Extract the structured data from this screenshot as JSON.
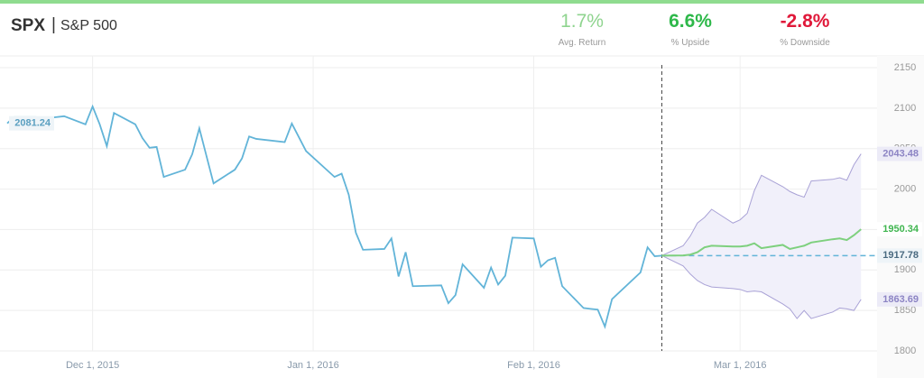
{
  "header": {
    "symbol": "SPX",
    "name": "S&P 500",
    "stats": [
      {
        "value": "1.7%",
        "label": "Avg. Return"
      },
      {
        "value": "6.6%",
        "label": "% Upside"
      },
      {
        "value": "-2.8%",
        "label": "% Downside"
      }
    ]
  },
  "chart_data": {
    "type": "line",
    "xlim": [
      "2015-11-19",
      "2016-03-20"
    ],
    "xticks": [
      {
        "value": "2015-12-01",
        "label": "Dec 1, 2015"
      },
      {
        "value": "2016-01-01",
        "label": "Jan 1, 2016"
      },
      {
        "value": "2016-02-01",
        "label": "Feb 1, 2016"
      },
      {
        "value": "2016-03-01",
        "label": "Mar 1, 2016"
      }
    ],
    "ylim": [
      1800,
      2150
    ],
    "yticks": [
      1800,
      1850,
      1900,
      1950,
      2000,
      2050,
      2100,
      2150
    ],
    "grid": true,
    "color": "#62b4d8",
    "x": [
      "2015-11-19",
      "2015-11-20",
      "2015-11-23",
      "2015-11-24",
      "2015-11-25",
      "2015-11-27",
      "2015-11-30",
      "2015-12-01",
      "2015-12-02",
      "2015-12-03",
      "2015-12-04",
      "2015-12-07",
      "2015-12-08",
      "2015-12-09",
      "2015-12-10",
      "2015-12-11",
      "2015-12-14",
      "2015-12-15",
      "2015-12-16",
      "2015-12-17",
      "2015-12-18",
      "2015-12-21",
      "2015-12-22",
      "2015-12-23",
      "2015-12-24",
      "2015-12-28",
      "2015-12-29",
      "2015-12-30",
      "2015-12-31",
      "2016-01-04",
      "2016-01-05",
      "2016-01-06",
      "2016-01-07",
      "2016-01-08",
      "2016-01-11",
      "2016-01-12",
      "2016-01-13",
      "2016-01-14",
      "2016-01-15",
      "2016-01-19",
      "2016-01-20",
      "2016-01-21",
      "2016-01-22",
      "2016-01-25",
      "2016-01-26",
      "2016-01-27",
      "2016-01-28",
      "2016-01-29",
      "2016-02-01",
      "2016-02-02",
      "2016-02-03",
      "2016-02-04",
      "2016-02-05",
      "2016-02-08",
      "2016-02-09",
      "2016-02-10",
      "2016-02-11",
      "2016-02-12",
      "2016-02-16",
      "2016-02-17",
      "2016-02-18",
      "2016-02-19"
    ],
    "values": [
      2081.24,
      2089,
      2089,
      2088,
      2088,
      2090,
      2080,
      2102,
      2080,
      2053,
      2094,
      2080,
      2063,
      2051,
      2052,
      2015,
      2024,
      2043,
      2075,
      2041,
      2007,
      2024,
      2038,
      2065,
      2062,
      2058,
      2081,
      2064,
      2047,
      2015,
      2019,
      1993,
      1946,
      1925,
      1926,
      1939,
      1892,
      1922,
      1880,
      1881,
      1859,
      1869,
      1907,
      1878,
      1903,
      1882,
      1893,
      1940,
      1939,
      1904,
      1912,
      1915,
      1880,
      1853,
      1852,
      1851,
      1830,
      1864,
      1897,
      1928,
      1917,
      1917.78
    ],
    "forecast": {
      "x": [
        "2016-02-19",
        "2016-02-22",
        "2016-02-23",
        "2016-02-24",
        "2016-02-25",
        "2016-02-26",
        "2016-02-29",
        "2016-03-01",
        "2016-03-02",
        "2016-03-03",
        "2016-03-04",
        "2016-03-07",
        "2016-03-08",
        "2016-03-09",
        "2016-03-10",
        "2016-03-11",
        "2016-03-14",
        "2016-03-15",
        "2016-03-16",
        "2016-03-17",
        "2016-03-18"
      ],
      "upper": [
        1917.78,
        1930,
        1942,
        1958,
        1965,
        1975,
        1958,
        1962,
        1970,
        1998,
        2017,
        2003,
        1997,
        1993,
        1990,
        2010,
        2012,
        2014,
        2011,
        2030,
        2043.48
      ],
      "median": [
        1917.78,
        1918,
        1919,
        1922,
        1928,
        1930,
        1929,
        1929,
        1930,
        1933,
        1927,
        1931,
        1926,
        1928,
        1930,
        1934,
        1938,
        1939,
        1937,
        1943,
        1950.34
      ],
      "lower": [
        1917.78,
        1905,
        1895,
        1887,
        1882,
        1879,
        1877,
        1876,
        1873,
        1874,
        1873,
        1858,
        1852,
        1840,
        1850,
        1840,
        1848,
        1853,
        1852,
        1850,
        1863.69
      ],
      "band_color": "#a9a2d6",
      "band_fill": "#f1f0fa",
      "median_color": "#7ed07e"
    }
  }
}
